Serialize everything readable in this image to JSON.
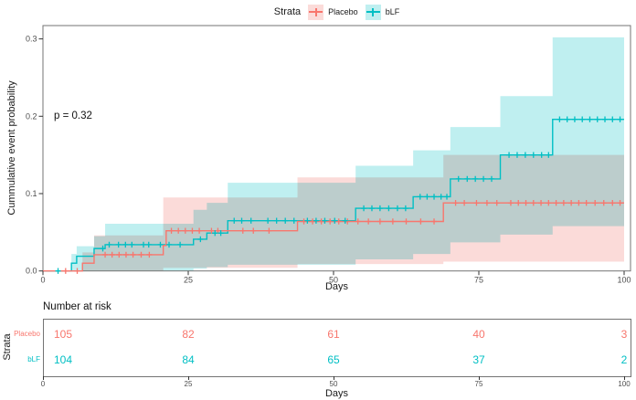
{
  "legend": {
    "title": "Strata",
    "items": [
      {
        "label": "Placebo",
        "color": "#F8766D",
        "fill": "#FBDBD9"
      },
      {
        "label": "bLF",
        "color": "#00BFC4",
        "fill": "#BFEFF0"
      }
    ]
  },
  "chart_data": {
    "type": "line",
    "subtype": "kaplan-meier-cumulative-incidence",
    "title": "",
    "xlabel": "Days",
    "ylabel": "Cummulative event probability",
    "annotation": "p = 0.32",
    "xlim": [
      0,
      100
    ],
    "ylim": [
      0,
      0.315
    ],
    "grid": false,
    "legend_position": "top",
    "xticks": [
      0,
      25,
      50,
      75,
      100
    ],
    "yticks": [
      0,
      0.1,
      0.2,
      0.3
    ],
    "ytick_labels": [
      "0.0",
      "0.1",
      "0.2",
      "0.3"
    ],
    "series": [
      {
        "name": "Placebo",
        "color": "#F8766D",
        "band_fill": "#FBDBD9",
        "steps": [
          [
            0,
            0
          ],
          [
            6.8,
            0.01
          ],
          [
            8.8,
            0.021
          ],
          [
            20.7,
            0.033
          ],
          [
            21.2,
            0.052
          ],
          [
            43.8,
            0.064
          ],
          [
            68.9,
            0.088
          ],
          [
            100,
            0.088
          ]
        ],
        "censor_days": [
          3.9,
          5.9,
          10.7,
          11.9,
          13.1,
          14.3,
          15.5,
          16.9,
          18.3,
          22.1,
          23.3,
          24.5,
          25.7,
          26.9,
          29.0,
          30.1,
          34.4,
          36.2,
          38.9,
          44.9,
          46.4,
          47.9,
          49.4,
          50.9,
          52.4,
          54.2,
          56.0,
          58.0,
          60.2,
          62.5,
          65.0,
          67.3,
          71.0,
          72.5,
          74.6,
          76.4,
          78.1,
          80.5,
          81.8,
          83.1,
          84.4,
          85.7,
          87.0,
          88.3,
          89.6,
          90.9,
          92.2,
          93.5,
          95.0,
          96.5,
          98.0,
          99.3
        ],
        "ci_band": [
          [
            0,
            0,
            0
          ],
          [
            6.8,
            0,
            0.024
          ],
          [
            8.8,
            0,
            0.046
          ],
          [
            20.7,
            0.004,
            0.095
          ],
          [
            43.8,
            0.009,
            0.121
          ],
          [
            68.9,
            0.012,
            0.15
          ]
        ]
      },
      {
        "name": "bLF",
        "color": "#00BFC4",
        "band_fill": "#BFEFF0",
        "steps": [
          [
            0,
            0
          ],
          [
            4.9,
            0.01
          ],
          [
            5.8,
            0.019
          ],
          [
            8.8,
            0.029
          ],
          [
            10.7,
            0.034
          ],
          [
            25.9,
            0.041
          ],
          [
            28.2,
            0.049
          ],
          [
            31.8,
            0.065
          ],
          [
            53.8,
            0.081
          ],
          [
            63.7,
            0.096
          ],
          [
            70.1,
            0.119
          ],
          [
            78.7,
            0.15
          ],
          [
            87.7,
            0.196
          ],
          [
            100,
            0.196
          ]
        ],
        "censor_days": [
          2.6,
          10.3,
          11.4,
          13.0,
          14.2,
          15.3,
          17.3,
          18.2,
          20.2,
          21.7,
          23.6,
          27.1,
          29.6,
          30.6,
          32.9,
          34.2,
          35.8,
          38.7,
          40.2,
          41.7,
          43.2,
          45.5,
          47.0,
          48.5,
          50.2,
          52.0,
          55.2,
          56.6,
          58.0,
          59.5,
          61.0,
          62.4,
          64.9,
          66.1,
          67.3,
          68.5,
          69.5,
          71.5,
          73.0,
          74.4,
          75.8,
          77.2,
          80.2,
          81.6,
          83.0,
          84.4,
          85.8,
          87.0,
          88.9,
          90.2,
          91.5,
          92.8,
          94.1,
          95.4,
          96.7,
          98.0,
          99.3
        ],
        "ci_band": [
          [
            0,
            0,
            0
          ],
          [
            4.9,
            0,
            0.022
          ],
          [
            5.8,
            0,
            0.032
          ],
          [
            8.8,
            0,
            0.045
          ],
          [
            10.7,
            0,
            0.061
          ],
          [
            25.9,
            0.003,
            0.079
          ],
          [
            28.2,
            0.005,
            0.088
          ],
          [
            31.8,
            0.008,
            0.114
          ],
          [
            53.8,
            0.015,
            0.136
          ],
          [
            63.7,
            0.022,
            0.156
          ],
          [
            70.1,
            0.037,
            0.186
          ],
          [
            78.7,
            0.047,
            0.226
          ],
          [
            87.7,
            0.058,
            0.302
          ]
        ]
      }
    ]
  },
  "risk_table": {
    "title": "Number at risk",
    "axis_title_left": "Strata",
    "xlabel": "Days",
    "columns": [
      0,
      25,
      50,
      75,
      100
    ],
    "rows": [
      {
        "label": "Placebo",
        "color": "#F8766D",
        "values": [
          "105",
          "82",
          "61",
          "40",
          "3"
        ]
      },
      {
        "label": "bLF",
        "color": "#00BFC4",
        "values": [
          "104",
          "84",
          "65",
          "37",
          "2"
        ]
      }
    ]
  }
}
